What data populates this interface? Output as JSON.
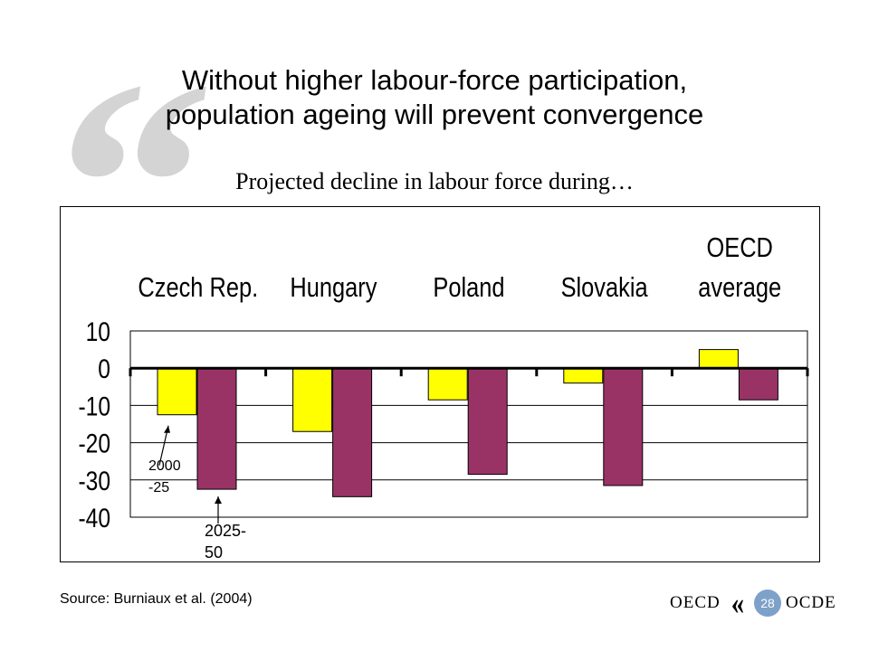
{
  "slide": {
    "title_line1": "Without higher labour-force participation,",
    "title_line2": "population ageing will prevent convergence",
    "subtitle": "Projected decline in labour force during…",
    "source": "Source: Burniaux et al. (2004)",
    "page_number": "28",
    "logo_en": "OECD",
    "logo_fr": "OCDE",
    "watermark_glyph": "“"
  },
  "chart_data": {
    "type": "bar",
    "categories": [
      [
        "Czech Rep."
      ],
      [
        "Hungary"
      ],
      [
        "Poland"
      ],
      [
        "Slovakia"
      ],
      [
        "OECD",
        "average"
      ]
    ],
    "series": [
      {
        "name": "2000-25",
        "color": "#ffff00",
        "values": [
          -12.5,
          -17,
          -8.5,
          -4,
          5
        ]
      },
      {
        "name": "2025-50",
        "color": "#993366",
        "values": [
          -32.5,
          -34.5,
          -28.5,
          -31.5,
          -8.5
        ]
      }
    ],
    "ylim": [
      -40,
      10
    ],
    "yticks": [
      10,
      0,
      -10,
      -20,
      -30,
      -40
    ],
    "grid": true,
    "annotations": [
      {
        "series": 0,
        "category": 0,
        "lines": [
          "2000",
          "-25"
        ]
      },
      {
        "series": 1,
        "category": 0,
        "lines": [
          "2025-",
          "50"
        ]
      }
    ]
  }
}
